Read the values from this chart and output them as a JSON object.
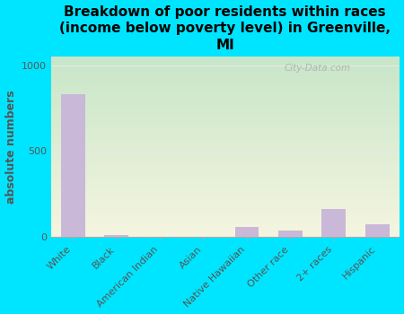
{
  "categories": [
    "White",
    "Black",
    "American Indian",
    "Asian",
    "Native Hawaiian",
    "Other race",
    "2+ races",
    "Hispanic"
  ],
  "values": [
    830,
    10,
    0,
    0,
    55,
    35,
    160,
    70
  ],
  "bar_color": "#c9b8d8",
  "title": "Breakdown of poor residents within races\n(income below poverty level) in Greenville,\nMI",
  "ylabel": "absolute numbers",
  "ylim": [
    0,
    1050
  ],
  "yticks": [
    0,
    500,
    1000
  ],
  "background_outer": "#00e5ff",
  "grad_top_left": "#c8e6c9",
  "grad_bottom_right": "#f5f5e0",
  "watermark": "City-Data.com",
  "title_fontsize": 11,
  "ylabel_fontsize": 9,
  "tick_fontsize": 8,
  "ylabel_color": "#555555",
  "grid_color": "#e8e8e8",
  "spine_color": "#aaaaaa"
}
